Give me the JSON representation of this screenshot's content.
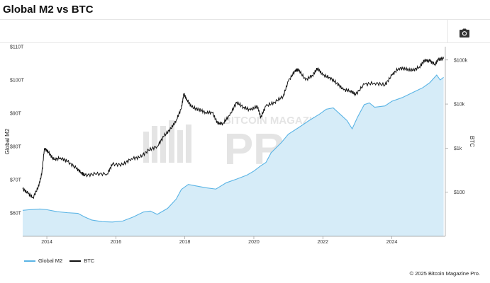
{
  "header": {
    "title": "Global M2 vs BTC"
  },
  "toolbar": {
    "camera_icon": "camera-icon"
  },
  "footer": {
    "copyright": "© 2025 Bitcoin Magazine Pro."
  },
  "watermark": {
    "top_text": "BITCOIN MAGAZINE",
    "main_text": "PRO"
  },
  "colors": {
    "m2_line": "#5ab4e5",
    "m2_fill": "#d6ecf8",
    "btc_line": "#111111",
    "watermark": "#cfcfcf"
  },
  "chart_data": {
    "type": "line",
    "title": "Global M2 vs BTC",
    "x_ticks": [
      "2014",
      "2016",
      "2018",
      "2020",
      "2022",
      "2024"
    ],
    "x_range": [
      2013.3,
      2025.55
    ],
    "left_axis": {
      "label": "Global M2",
      "ticks": [
        "$60T",
        "$70T",
        "$80T",
        "$90T",
        "$100T",
        "$110T"
      ],
      "tick_values": [
        60,
        70,
        80,
        90,
        100,
        110
      ],
      "range": [
        53,
        110
      ]
    },
    "right_axis": {
      "label": "BTC",
      "scale": "log",
      "ticks": [
        "$100",
        "$1k",
        "$10k",
        "$100k"
      ],
      "tick_values": [
        100,
        1000,
        10000,
        100000
      ],
      "range": [
        10,
        200000
      ]
    },
    "grid": false,
    "legend_position": "bottom-left",
    "series": [
      {
        "name": "Global M2",
        "axis": "left",
        "style": "area",
        "x": [
          2013.3,
          2013.5,
          2013.8,
          2014.0,
          2014.3,
          2014.6,
          2014.9,
          2015.1,
          2015.3,
          2015.6,
          2015.9,
          2016.2,
          2016.5,
          2016.8,
          2017.0,
          2017.2,
          2017.5,
          2017.75,
          2017.9,
          2018.1,
          2018.3,
          2018.6,
          2018.9,
          2019.2,
          2019.5,
          2019.8,
          2020.0,
          2020.2,
          2020.35,
          2020.5,
          2020.8,
          2021.0,
          2021.3,
          2021.6,
          2021.9,
          2022.1,
          2022.3,
          2022.5,
          2022.7,
          2022.85,
          2023.0,
          2023.2,
          2023.35,
          2023.5,
          2023.8,
          2024.0,
          2024.3,
          2024.6,
          2024.9,
          2025.1,
          2025.3,
          2025.4,
          2025.5
        ],
        "values": [
          60.8,
          61.0,
          61.2,
          61.0,
          60.4,
          60.1,
          59.9,
          58.8,
          57.9,
          57.4,
          57.3,
          57.6,
          58.8,
          60.3,
          60.6,
          59.6,
          61.4,
          64.2,
          67.1,
          68.6,
          68.2,
          67.6,
          67.2,
          69.1,
          70.2,
          71.4,
          72.6,
          74.2,
          75.2,
          78.1,
          81.2,
          83.7,
          85.7,
          87.8,
          89.7,
          91.2,
          91.6,
          89.7,
          87.8,
          85.3,
          88.7,
          92.6,
          93.1,
          91.8,
          92.2,
          93.6,
          94.7,
          96.2,
          97.7,
          99.2,
          101.5,
          100.0,
          100.8
        ]
      },
      {
        "name": "BTC",
        "axis": "right",
        "style": "line",
        "x": [
          2013.3,
          2013.45,
          2013.6,
          2013.75,
          2013.85,
          2013.93,
          2014.05,
          2014.2,
          2014.4,
          2014.6,
          2014.85,
          2015.0,
          2015.1,
          2015.4,
          2015.75,
          2015.9,
          2016.2,
          2016.45,
          2016.7,
          2016.95,
          2017.2,
          2017.4,
          2017.6,
          2017.75,
          2017.9,
          2017.97,
          2018.05,
          2018.2,
          2018.4,
          2018.6,
          2018.8,
          2018.95,
          2019.1,
          2019.3,
          2019.5,
          2019.7,
          2019.9,
          2020.1,
          2020.2,
          2020.35,
          2020.6,
          2020.85,
          2021.0,
          2021.2,
          2021.3,
          2021.5,
          2021.7,
          2021.85,
          2022.0,
          2022.2,
          2022.4,
          2022.6,
          2022.8,
          2022.95,
          2023.2,
          2023.5,
          2023.8,
          2024.0,
          2024.2,
          2024.4,
          2024.6,
          2024.8,
          2024.95,
          2025.1,
          2025.25,
          2025.35,
          2025.5
        ],
        "values": [
          120,
          95,
          75,
          130,
          250,
          1000,
          800,
          550,
          600,
          500,
          350,
          280,
          240,
          260,
          260,
          430,
          420,
          580,
          620,
          900,
          1100,
          1900,
          2800,
          4300,
          8000,
          17000,
          13000,
          8500,
          7500,
          6500,
          6300,
          3700,
          3600,
          5500,
          11000,
          8500,
          7300,
          9000,
          5000,
          9000,
          11000,
          15000,
          33000,
          58000,
          60000,
          35000,
          45000,
          65000,
          45000,
          40000,
          30000,
          21000,
          20000,
          16500,
          28000,
          30000,
          27000,
          45000,
          65000,
          63000,
          57000,
          70000,
          98000,
          95000,
          80000,
          103000,
          108000
        ]
      }
    ]
  },
  "legend": [
    {
      "label": "Global M2",
      "color": "#5ab4e5"
    },
    {
      "label": "BTC",
      "color": "#111111"
    }
  ]
}
